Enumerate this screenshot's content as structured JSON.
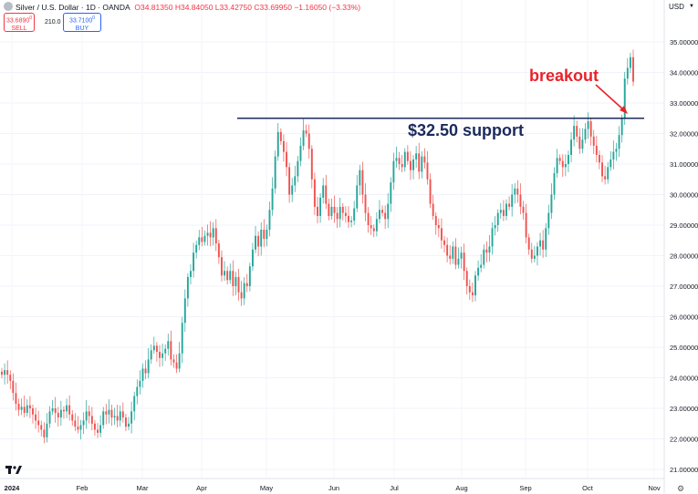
{
  "header": {
    "title": "Silver / U.S. Dollar · 1D · OANDA",
    "open": "O34.81350",
    "high": "H34.84050",
    "low": "L33.42750",
    "close": "C33.69950",
    "change": "−1.16050 (−3.33%)",
    "sell_price": "33.6890",
    "sell_sup": "0",
    "sell_label": "SELL",
    "spread": "210.0",
    "buy_price": "33.7100",
    "buy_sup": "0",
    "buy_label": "BUY",
    "currency": "USD"
  },
  "annotations": {
    "breakout": "breakout",
    "support": "$32.50 support"
  },
  "colors": {
    "up": "#26a69a",
    "down": "#ef5350",
    "support_line": "#1c2a5c",
    "annotation_red": "#e8232a",
    "arrow": "#e8232a"
  },
  "icons": {
    "symbol": "silver-icon",
    "logo": "tradingview-logo-icon",
    "settings": "gear-icon"
  },
  "chart_data": {
    "type": "candlestick",
    "ylim": [
      21.0,
      35.35
    ],
    "y_ticks": [
      "35.00000",
      "34.00000",
      "33.00000",
      "32.00000",
      "31.00000",
      "30.00000",
      "29.00000",
      "28.00000",
      "27.00000",
      "26.00000",
      "25.00000",
      "24.00000",
      "23.00000",
      "22.00000",
      "21.00000"
    ],
    "x_ticks": [
      "2024",
      "Feb",
      "Mar",
      "Apr",
      "May",
      "Jun",
      "Jul",
      "Aug",
      "Sep",
      "Oct",
      "Nov"
    ],
    "support_level": 32.5,
    "closes": [
      24.1,
      24.25,
      24.1,
      23.9,
      23.5,
      23.15,
      22.95,
      23.05,
      22.85,
      23.1,
      23.0,
      22.8,
      22.6,
      22.45,
      22.3,
      22.05,
      22.5,
      22.9,
      23.0,
      22.85,
      22.7,
      22.95,
      22.9,
      23.1,
      22.8,
      22.6,
      22.4,
      22.3,
      22.45,
      22.6,
      22.9,
      22.75,
      22.5,
      22.3,
      22.2,
      22.45,
      22.9,
      22.8,
      22.95,
      22.7,
      22.75,
      22.6,
      22.9,
      22.7,
      22.4,
      22.5,
      22.9,
      23.4,
      23.7,
      23.9,
      24.3,
      24.15,
      24.6,
      24.9,
      25.05,
      24.85,
      24.65,
      24.8,
      24.95,
      25.2,
      24.6,
      24.5,
      24.3,
      24.8,
      25.8,
      26.6,
      27.3,
      27.5,
      28.1,
      28.35,
      28.6,
      28.45,
      28.65,
      28.75,
      28.6,
      28.9,
      28.4,
      27.95,
      27.35,
      27.5,
      27.2,
      27.5,
      27.0,
      27.3,
      26.8,
      26.6,
      27.1,
      27.0,
      27.65,
      28.2,
      28.65,
      28.3,
      28.85,
      28.55,
      28.85,
      29.5,
      30.2,
      31.25,
      32.05,
      31.75,
      31.4,
      30.9,
      30.0,
      30.3,
      30.6,
      31.1,
      31.6,
      32.1,
      32.0,
      31.5,
      30.5,
      29.6,
      29.3,
      29.9,
      30.3,
      29.7,
      29.3,
      29.6,
      29.4,
      29.2,
      29.6,
      29.4,
      29.3,
      29.1,
      29.15,
      29.55,
      30.3,
      30.8,
      30.0,
      29.4,
      29.0,
      28.9,
      28.8,
      29.2,
      29.5,
      29.4,
      29.2,
      29.7,
      30.4,
      31.1,
      31.2,
      31.0,
      30.9,
      31.4,
      31.1,
      30.8,
      31.15,
      31.35,
      30.75,
      31.25,
      31.05,
      30.5,
      29.7,
      29.3,
      29.0,
      28.9,
      28.5,
      28.35,
      28.0,
      27.9,
      28.3,
      27.7,
      27.9,
      28.1,
      27.5,
      27.0,
      26.8,
      26.7,
      27.35,
      27.6,
      27.7,
      28.2,
      28.1,
      28.3,
      28.9,
      29.0,
      29.4,
      29.5,
      29.3,
      29.7,
      29.6,
      30.0,
      30.2,
      30.0,
      29.6,
      29.4,
      28.6,
      28.2,
      27.9,
      28.0,
      28.3,
      28.5,
      28.2,
      28.9,
      29.4,
      30.0,
      30.7,
      31.2,
      31.1,
      30.9,
      31.0,
      31.3,
      31.8,
      32.25,
      31.9,
      31.5,
      31.8,
      32.15,
      32.4,
      31.9,
      31.6,
      31.3,
      31.05,
      30.6,
      30.5,
      30.9,
      31.15,
      31.4,
      31.5,
      31.95,
      32.5,
      33.8,
      34.15,
      34.5,
      33.7
    ]
  }
}
